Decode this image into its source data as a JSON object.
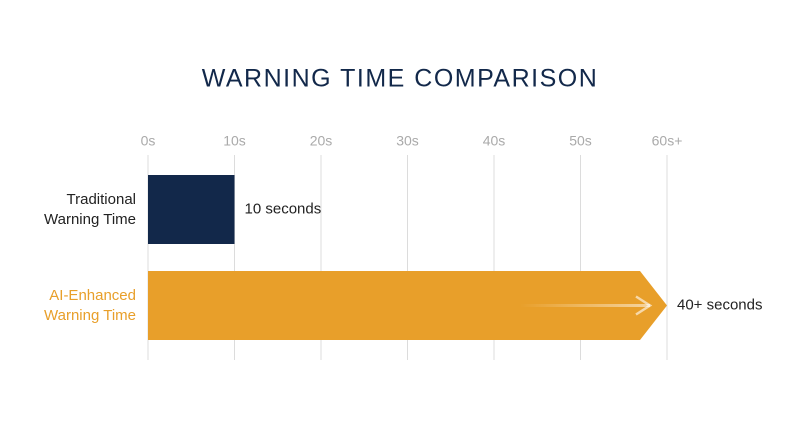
{
  "chart_data": {
    "type": "hbar",
    "title": "WARNING TIME COMPARISON",
    "categories": [
      "Traditional Warning Time",
      "AI-Enhanced Warning Time"
    ],
    "values": [
      10,
      60
    ],
    "colors": [
      "#12284a",
      "#e89f2a"
    ],
    "annotations": [
      "10 seconds",
      "40+ seconds"
    ],
    "xlim": [
      0,
      60
    ],
    "xticks": [
      {
        "value": 0,
        "label": "0s"
      },
      {
        "value": 10,
        "label": "10s"
      },
      {
        "value": 20,
        "label": "20s"
      },
      {
        "value": 30,
        "label": "30s"
      },
      {
        "value": 40,
        "label": "40s"
      },
      {
        "value": 50,
        "label": "50s"
      },
      {
        "value": 60,
        "label": "60s+"
      }
    ],
    "grid": true
  }
}
